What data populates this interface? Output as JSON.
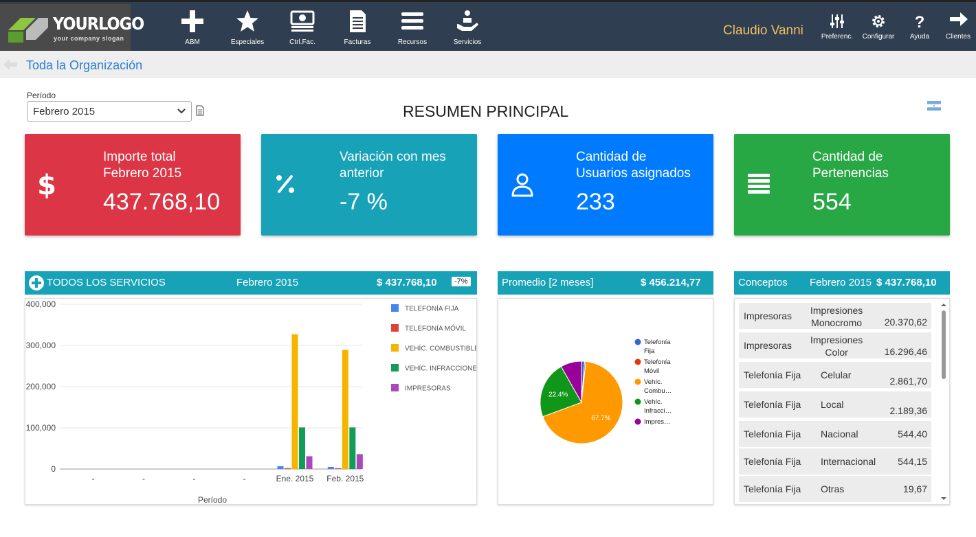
{
  "logo": {
    "text": "YOURLOGO",
    "slogan": "your company slogan"
  },
  "nav": [
    {
      "label": "ABM",
      "icon": "plus-icon"
    },
    {
      "label": "Especiales",
      "icon": "star-icon"
    },
    {
      "label": "Ctrl.Fac.",
      "icon": "money-icon"
    },
    {
      "label": "Facturas",
      "icon": "document-icon"
    },
    {
      "label": "Recursos",
      "icon": "menu-icon"
    },
    {
      "label": "Servicios",
      "icon": "service-icon"
    }
  ],
  "user": {
    "name": "Claudio Vanni"
  },
  "right_nav": [
    {
      "label": "Preferenc.",
      "icon": "sliders-icon"
    },
    {
      "label": "Configurar",
      "icon": "gear-icon"
    },
    {
      "label": "Ayuda",
      "icon": "question-icon"
    },
    {
      "label": "Clientes",
      "icon": "arrow-right-icon"
    }
  ],
  "breadcrumb": "Toda la Organización",
  "period": {
    "label": "Período",
    "value": "Febrero 2015"
  },
  "page_title": "RESUMEN PRINCIPAL",
  "kpis": [
    {
      "label": "Importe total\nFebrero 2015",
      "value": "437.768,10",
      "color": "#dc3545",
      "icon": "dollar-icon"
    },
    {
      "label": "Variación con mes\nanterior",
      "value": "-7 %",
      "color": "#17a2b8",
      "icon": "percent-icon"
    },
    {
      "label": "Cantidad de\nUsuarios asignados",
      "value": "233",
      "color": "#007bff",
      "icon": "user-icon"
    },
    {
      "label": "Cantidad de\nPertenencias",
      "value": "554",
      "color": "#28a745",
      "icon": "list-icon"
    }
  ],
  "services_panel": {
    "title": "TODOS LOS SERVICIOS",
    "period": "Febrero 2015",
    "amount": "$ 437.768,10",
    "badge": "-7%"
  },
  "average_panel": {
    "title": "Promedio [2 meses]",
    "amount": "$ 456.214,77"
  },
  "concepts_panel": {
    "title": "Conceptos",
    "period": "Febrero 2015",
    "amount": "$ 437.768,10"
  },
  "concepts": [
    {
      "group": "Impresoras",
      "concept": "Impresiones\nMonocromo",
      "amount": "20.370,62"
    },
    {
      "group": "Impresoras",
      "concept": "Impresiones\nColor",
      "amount": "16.296,46"
    },
    {
      "group": "Telefonía Fija",
      "concept": "Celular",
      "amount": "2.861,70"
    },
    {
      "group": "Telefonía Fija",
      "concept": "Local",
      "amount": "2.189,36"
    },
    {
      "group": "Telefonía Fija",
      "concept": "Nacional",
      "amount": "544,40"
    },
    {
      "group": "Telefonía Fija",
      "concept": "Internacional",
      "amount": "544,15"
    },
    {
      "group": "Telefonía Fija",
      "concept": "Otras",
      "amount": "19,67"
    }
  ],
  "chart_data": [
    {
      "type": "bar",
      "xlabel": "Período",
      "ylabel": "",
      "ylim": [
        0,
        400000
      ],
      "yticks": [
        "0",
        "100,000",
        "200,000",
        "300,000",
        "400,000"
      ],
      "categories": [
        "-",
        "-",
        "-",
        "-",
        "Ene. 2015",
        "Feb. 2015"
      ],
      "legend_position": "right",
      "series": [
        {
          "name": "TELEFONÍA FIJA",
          "color": "#4285f4",
          "values": [
            0,
            0,
            0,
            0,
            7000,
            5000
          ]
        },
        {
          "name": "TELEFONÍA MÓVIL",
          "color": "#db4437",
          "values": [
            0,
            0,
            0,
            0,
            2000,
            2000
          ]
        },
        {
          "name": "VEHÍC. COMBUSTIBLE",
          "color": "#f4b400",
          "values": [
            0,
            0,
            0,
            0,
            327000,
            289000
          ]
        },
        {
          "name": "VEHÍC. INFRACCIONES",
          "color": "#0f9d58",
          "values": [
            0,
            0,
            0,
            0,
            101000,
            101000
          ]
        },
        {
          "name": "IMPRESORAS",
          "color": "#ab47bc",
          "values": [
            0,
            0,
            0,
            0,
            31000,
            36000
          ]
        }
      ]
    },
    {
      "type": "pie",
      "legend_position": "right",
      "slices": [
        {
          "name": "Telefonía Fija",
          "legend": "Telefonía\nFija",
          "value": 1.2,
          "color": "#3366cc",
          "label": ""
        },
        {
          "name": "Telefonía Móvil",
          "legend": "Telefonía\nMóvil",
          "value": 0.5,
          "color": "#dc3912",
          "label": ""
        },
        {
          "name": "Vehíc. Combu…",
          "legend": "Vehíc.\nCombu…",
          "value": 67.7,
          "color": "#ff9900",
          "label": "67.7%"
        },
        {
          "name": "Vehíc. Infracci…",
          "legend": "Vehíc.\nInfracci…",
          "value": 22.4,
          "color": "#109618",
          "label": "22.4%"
        },
        {
          "name": "Impres…",
          "legend": "Impres…",
          "value": 8.2,
          "color": "#990099",
          "label": ""
        }
      ]
    }
  ]
}
